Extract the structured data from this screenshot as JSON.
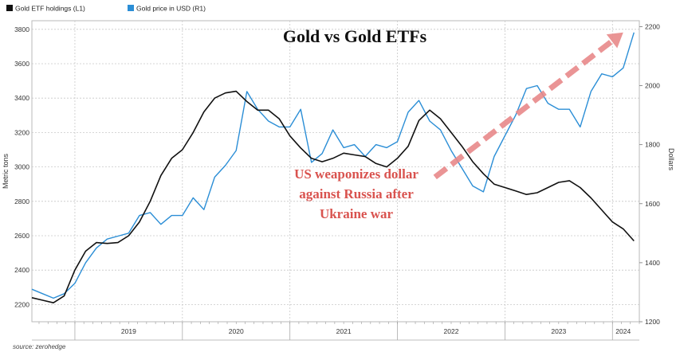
{
  "chart_data": {
    "type": "line",
    "title": "Gold vs Gold ETFs",
    "annotation": [
      "US weaponizes dollar",
      "against Russia after",
      "Ukraine war"
    ],
    "source": "source: zerohedge",
    "ylabel_left": "Metric tons",
    "ylabel_right": "Dollars",
    "ylim_left": [
      2100,
      3850
    ],
    "ylim_right": [
      1200,
      2220
    ],
    "yticks_left": [
      2200,
      2400,
      2600,
      2800,
      3000,
      3200,
      3400,
      3600,
      3800
    ],
    "yticks_right": [
      1200,
      1400,
      1600,
      1800,
      2000,
      2200
    ],
    "xlim": [
      2018.6,
      2024.25
    ],
    "x_ticks": [
      {
        "label": "2019",
        "x": 2019.0
      },
      {
        "label": "2020",
        "x": 2020.0
      },
      {
        "label": "2021",
        "x": 2021.0
      },
      {
        "label": "2022",
        "x": 2022.0
      },
      {
        "label": "2023",
        "x": 2023.0
      },
      {
        "label": "2024",
        "x": 2024.0
      }
    ],
    "x_tick_labels": [
      {
        "label": "2019",
        "x": 2019.5
      },
      {
        "label": "2020",
        "x": 2020.5
      },
      {
        "label": "2021",
        "x": 2021.5
      },
      {
        "label": "2022",
        "x": 2022.5
      },
      {
        "label": "2023",
        "x": 2023.5
      },
      {
        "label": "2024",
        "x": 2024.1
      }
    ],
    "legend_position": "top-left",
    "grid": true,
    "series": [
      {
        "name": "Gold ETF holdings (L1)",
        "axis": "left",
        "color": "#111111",
        "x": [
          2018.6,
          2018.7,
          2018.8,
          2018.9,
          2019.0,
          2019.1,
          2019.2,
          2019.3,
          2019.4,
          2019.5,
          2019.6,
          2019.7,
          2019.8,
          2019.9,
          2020.0,
          2020.1,
          2020.2,
          2020.3,
          2020.4,
          2020.5,
          2020.6,
          2020.7,
          2020.8,
          2020.9,
          2021.0,
          2021.1,
          2021.2,
          2021.3,
          2021.4,
          2021.5,
          2021.6,
          2021.7,
          2021.8,
          2021.9,
          2022.0,
          2022.1,
          2022.2,
          2022.3,
          2022.4,
          2022.5,
          2022.6,
          2022.7,
          2022.8,
          2022.9,
          2023.0,
          2023.1,
          2023.2,
          2023.3,
          2023.4,
          2023.5,
          2023.6,
          2023.7,
          2023.8,
          2023.9,
          2024.0,
          2024.1,
          2024.2
        ],
        "values": [
          2240,
          2225,
          2210,
          2250,
          2400,
          2510,
          2560,
          2555,
          2560,
          2600,
          2680,
          2800,
          2950,
          3050,
          3100,
          3200,
          3320,
          3400,
          3430,
          3440,
          3380,
          3330,
          3330,
          3280,
          3180,
          3110,
          3050,
          3030,
          3050,
          3080,
          3070,
          3060,
          3020,
          3000,
          3050,
          3120,
          3270,
          3330,
          3280,
          3200,
          3120,
          3030,
          2960,
          2900,
          2880,
          2860,
          2840,
          2850,
          2880,
          2910,
          2920,
          2880,
          2820,
          2750,
          2680,
          2640,
          2570
        ]
      },
      {
        "name": "Gold price in USD (R1)",
        "axis": "right",
        "color": "#2b8ed6",
        "x": [
          2018.6,
          2018.7,
          2018.8,
          2018.9,
          2019.0,
          2019.1,
          2019.2,
          2019.3,
          2019.4,
          2019.5,
          2019.6,
          2019.7,
          2019.8,
          2019.9,
          2020.0,
          2020.1,
          2020.2,
          2020.3,
          2020.4,
          2020.5,
          2020.6,
          2020.7,
          2020.8,
          2020.9,
          2021.0,
          2021.1,
          2021.2,
          2021.3,
          2021.4,
          2021.5,
          2021.6,
          2021.7,
          2021.8,
          2021.9,
          2022.0,
          2022.1,
          2022.2,
          2022.3,
          2022.4,
          2022.5,
          2022.6,
          2022.7,
          2022.8,
          2022.9,
          2023.0,
          2023.1,
          2023.2,
          2023.3,
          2023.4,
          2023.5,
          2023.6,
          2023.7,
          2023.8,
          2023.9,
          2024.0,
          2024.1,
          2024.2
        ],
        "values": [
          1310,
          1295,
          1280,
          1295,
          1330,
          1400,
          1450,
          1480,
          1490,
          1500,
          1560,
          1570,
          1530,
          1560,
          1560,
          1620,
          1580,
          1690,
          1730,
          1780,
          1980,
          1920,
          1880,
          1860,
          1860,
          1920,
          1740,
          1770,
          1850,
          1790,
          1800,
          1760,
          1800,
          1790,
          1810,
          1910,
          1950,
          1880,
          1850,
          1780,
          1720,
          1660,
          1640,
          1760,
          1830,
          1900,
          1990,
          2000,
          1940,
          1920,
          1920,
          1860,
          1980,
          2040,
          2030,
          2060,
          2180
        ]
      }
    ]
  }
}
